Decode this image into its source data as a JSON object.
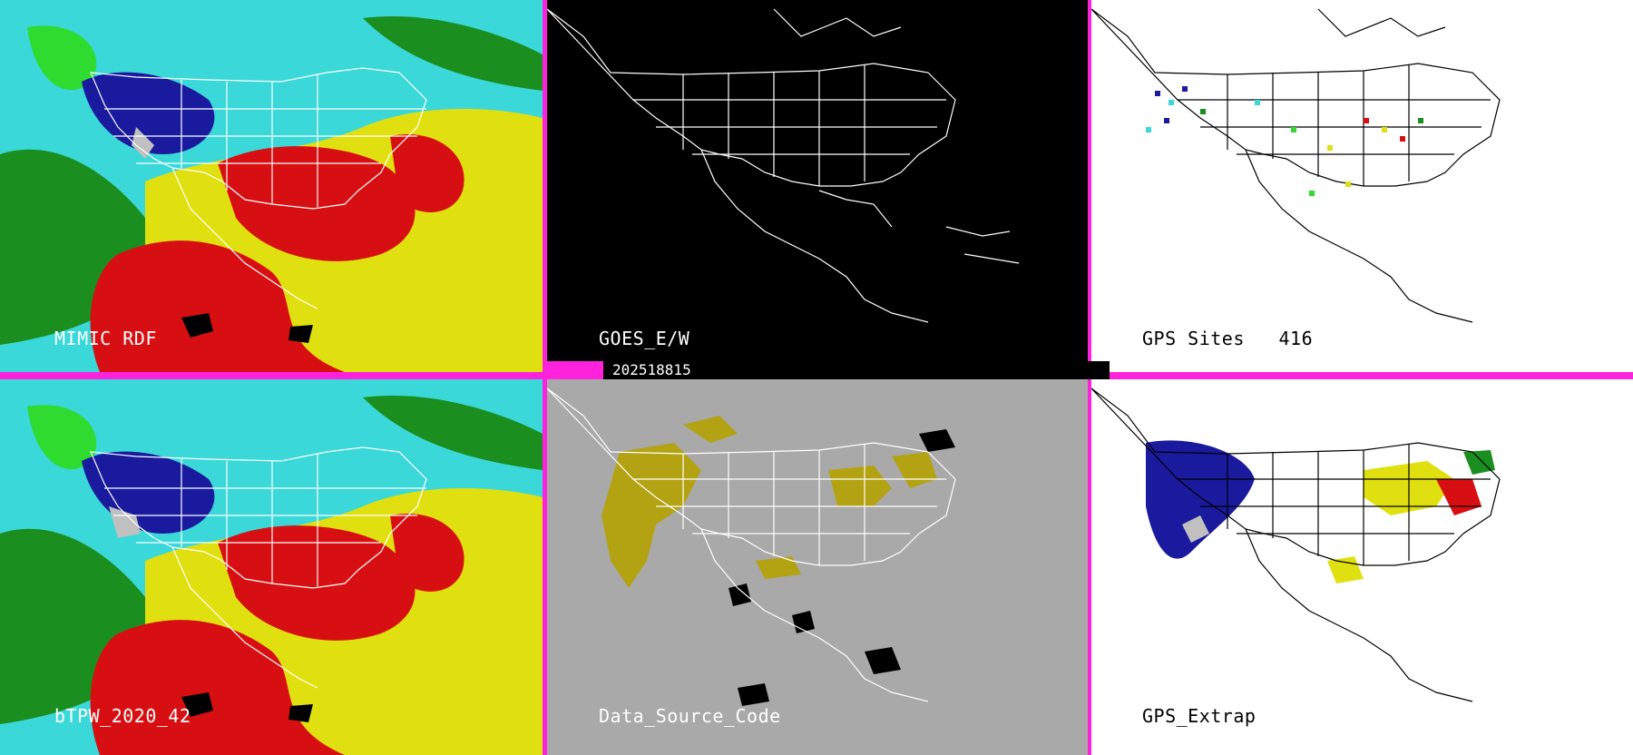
{
  "colors": {
    "frame": "#ff22dd",
    "tpw_palette": [
      "#3ad8d8",
      "#1a8f1f",
      "#2edb2e",
      "#e0e010",
      "#d80f12",
      "#1a1a9e",
      "#000000"
    ],
    "goes_bg": "#000000",
    "source_bg": "#a9a9a9",
    "source_gps": "#b3a312",
    "gps_bg": "#ffffff"
  },
  "panels": [
    {
      "id": "mimic",
      "label": "MIMIC RDF",
      "style": "tpw",
      "label_color": "#ffffff",
      "map_line": "map-outline-white"
    },
    {
      "id": "goes",
      "label": "GOES_E/W",
      "style": "blank-dark",
      "label_color": "#ffffff",
      "map_line": "map-outline-white"
    },
    {
      "id": "gps-sites",
      "label": "GPS Sites   416",
      "style": "gps-sites",
      "label_color": "#000000",
      "map_line": "map-outline-black"
    },
    {
      "id": "btpw",
      "label": "bTPW_2020_42",
      "style": "tpw",
      "label_color": "#ffffff",
      "map_line": "map-outline-white"
    },
    {
      "id": "source",
      "label": "Data_Source_Code",
      "style": "source",
      "label_color": "#ffffff",
      "map_line": "map-outline-white"
    },
    {
      "id": "extrap",
      "label": "GPS_Extrap",
      "style": "gps-extrap",
      "label_color": "#000000",
      "map_line": "map-outline-black"
    }
  ],
  "timestamp": "202518815"
}
